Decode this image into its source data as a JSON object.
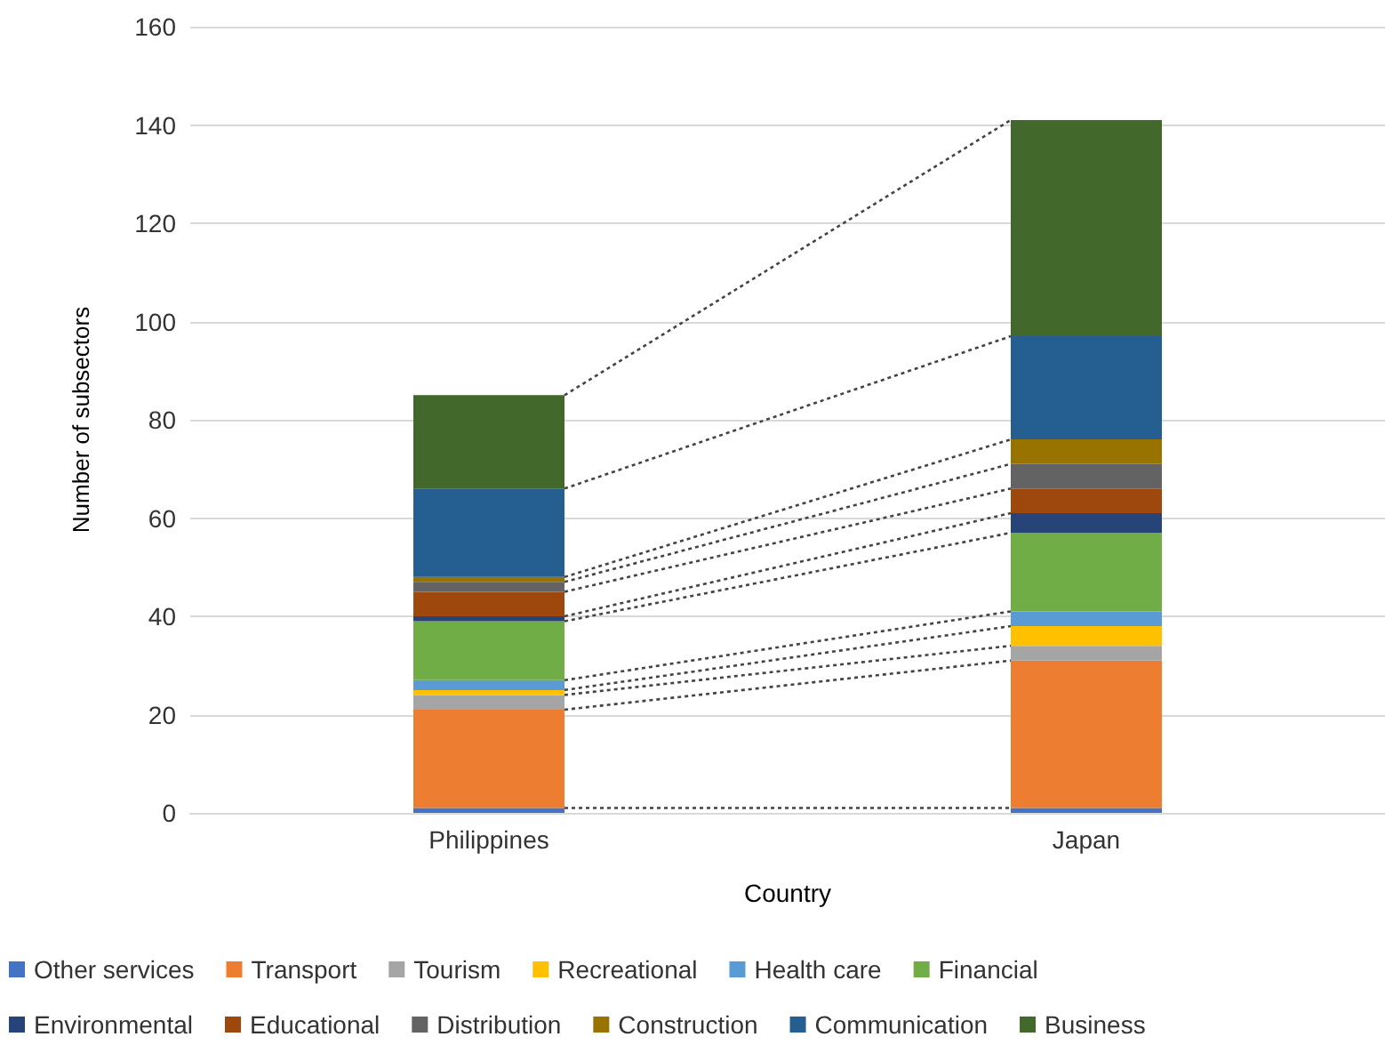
{
  "chart_data": {
    "type": "bar",
    "stacked": true,
    "xlabel": "Country",
    "ylabel": "Number of subsectors",
    "categories": [
      "Philippines",
      "Japan"
    ],
    "series": [
      {
        "name": "Other services",
        "color": "#4472c4",
        "values": [
          1,
          1
        ]
      },
      {
        "name": "Transport",
        "color": "#ed7d31",
        "values": [
          20,
          30
        ]
      },
      {
        "name": "Tourism",
        "color": "#a5a5a5",
        "values": [
          3,
          3
        ]
      },
      {
        "name": "Recreational",
        "color": "#ffc000",
        "values": [
          1,
          4
        ]
      },
      {
        "name": "Health care",
        "color": "#5b9bd5",
        "values": [
          2,
          3
        ]
      },
      {
        "name": "Financial",
        "color": "#70ad47",
        "values": [
          12,
          16
        ]
      },
      {
        "name": "Environmental",
        "color": "#264478",
        "values": [
          1,
          4
        ]
      },
      {
        "name": "Educational",
        "color": "#9e480e",
        "values": [
          5,
          5
        ]
      },
      {
        "name": "Distribution",
        "color": "#636363",
        "values": [
          2,
          5
        ]
      },
      {
        "name": "Construction",
        "color": "#997300",
        "values": [
          1,
          5
        ]
      },
      {
        "name": "Communication",
        "color": "#255e91",
        "values": [
          18,
          21
        ]
      },
      {
        "name": "Business",
        "color": "#43682b",
        "values": [
          19,
          44
        ]
      }
    ],
    "ylim": [
      0,
      160
    ],
    "yticks": [
      0,
      20,
      40,
      60,
      80,
      100,
      120,
      140,
      160
    ],
    "grid": "y",
    "legend": "bottom"
  }
}
